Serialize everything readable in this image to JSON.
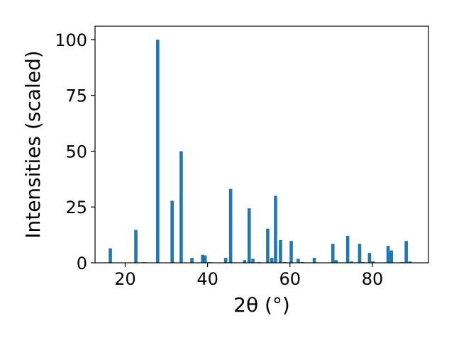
{
  "chart_data": {
    "type": "bar",
    "title": "",
    "xlabel": "2θ (°)",
    "ylabel": "Intensities (scaled)",
    "xlim": [
      12.7,
      93.6
    ],
    "ylim": [
      0,
      106
    ],
    "xticks": [
      "20",
      "40",
      "60",
      "80"
    ],
    "xtick_values": [
      20,
      40,
      60,
      80
    ],
    "yticks": [
      "0",
      "25",
      "50",
      "75",
      "100"
    ],
    "ytick_values": [
      0,
      25,
      50,
      75,
      100
    ],
    "grid": false,
    "bar_color": "#1f77b4",
    "points": [
      {
        "x": 16.4,
        "y": 6.5
      },
      {
        "x": 22.6,
        "y": 14.7
      },
      {
        "x": 24.6,
        "y": 0.3
      },
      {
        "x": 27.9,
        "y": 100
      },
      {
        "x": 31.4,
        "y": 27.8
      },
      {
        "x": 33.6,
        "y": 50
      },
      {
        "x": 36.2,
        "y": 2.2
      },
      {
        "x": 38.8,
        "y": 3.6
      },
      {
        "x": 39.4,
        "y": 3.3
      },
      {
        "x": 40.5,
        "y": 0.3
      },
      {
        "x": 44.4,
        "y": 2.2
      },
      {
        "x": 45.6,
        "y": 33.1
      },
      {
        "x": 49.0,
        "y": 1.2
      },
      {
        "x": 50.1,
        "y": 24.4
      },
      {
        "x": 51.0,
        "y": 1.8
      },
      {
        "x": 52.5,
        "y": 0.3
      },
      {
        "x": 54.6,
        "y": 15.3
      },
      {
        "x": 55.6,
        "y": 2.2
      },
      {
        "x": 56.5,
        "y": 30.0
      },
      {
        "x": 57.7,
        "y": 10.2
      },
      {
        "x": 58.8,
        "y": 0.3
      },
      {
        "x": 60.3,
        "y": 9.8
      },
      {
        "x": 62.0,
        "y": 1.8
      },
      {
        "x": 63.0,
        "y": 0.3
      },
      {
        "x": 65.9,
        "y": 2.2
      },
      {
        "x": 70.4,
        "y": 8.5
      },
      {
        "x": 71.2,
        "y": 1.2
      },
      {
        "x": 74.0,
        "y": 12.1
      },
      {
        "x": 74.9,
        "y": 0.6
      },
      {
        "x": 76.9,
        "y": 8.5
      },
      {
        "x": 77.7,
        "y": 0.3
      },
      {
        "x": 79.3,
        "y": 4.4
      },
      {
        "x": 80.1,
        "y": 0.6
      },
      {
        "x": 83.8,
        "y": 7.6
      },
      {
        "x": 84.6,
        "y": 5.5
      },
      {
        "x": 87.2,
        "y": 0.3
      },
      {
        "x": 88.2,
        "y": 9.8
      },
      {
        "x": 89.1,
        "y": 0.6
      }
    ]
  }
}
